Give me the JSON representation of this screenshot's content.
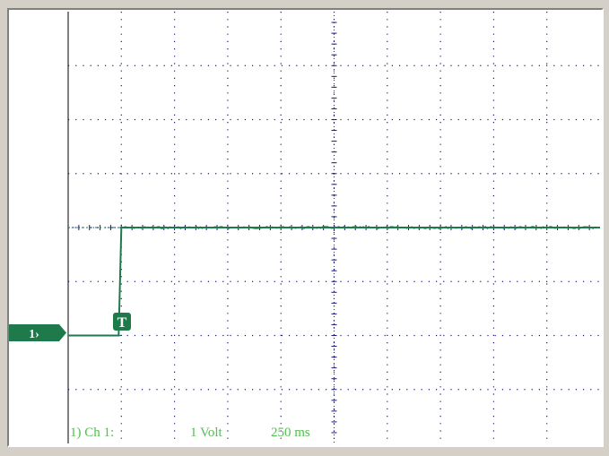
{
  "colors": {
    "window_bg": "#d4d0c8",
    "screen_bg": "#ffffff",
    "grid": "#1a1a7a",
    "trace": "#1e7a4a",
    "marker_fill": "#1e7a4a",
    "readout_text": "#4fc04f"
  },
  "channel_marker": {
    "label": "1›"
  },
  "trigger_marker": {
    "label": "T"
  },
  "readout": {
    "channel": "1) Ch 1:",
    "volts_per_div": "1 Volt",
    "time_per_div": "250 ms"
  },
  "chart_data": {
    "type": "line",
    "title": "",
    "xlabel": "",
    "ylabel": "",
    "grid": true,
    "divisions": {
      "x": 10,
      "y": 8
    },
    "xlim": [
      0,
      10
    ],
    "ylim": [
      -4,
      4
    ],
    "series": [
      {
        "x": [
          0,
          0.95,
          1.0,
          10
        ],
        "y": [
          -2.0,
          -2.0,
          0.0,
          0.0
        ]
      }
    ]
  }
}
